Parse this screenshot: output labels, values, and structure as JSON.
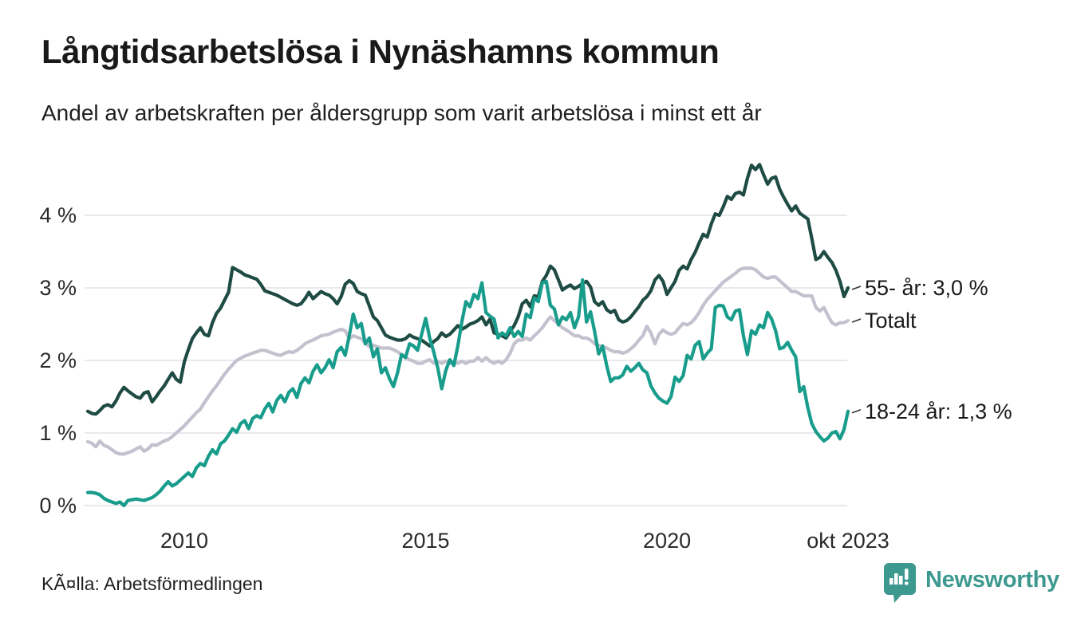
{
  "header": {
    "title": "Långtidsarbetslösa i Nynäshamns kommun",
    "subtitle": "Andel av arbetskraften per åldersgrupp som varit arbetslösa i minst ett år"
  },
  "source": {
    "text": "KÃ¤lla: Arbetsförmedlingen"
  },
  "branding": {
    "name": "Newsworthy",
    "accent_color": "#3d998f",
    "icon": "newsworthy-speech-bubble-bar-chart-icon"
  },
  "chart_data": {
    "type": "line",
    "x_start": "2008-01",
    "x_end": "2023-10",
    "x_interval": "monthly",
    "grid": true,
    "legend_position": "right-edge-direct-labels",
    "y_axis": {
      "unit": "percent",
      "range": [
        0,
        4.75
      ],
      "tick_values": [
        0,
        1,
        2,
        3,
        4
      ],
      "tick_labels": [
        "0 %",
        "1 %",
        "2 %",
        "3 %",
        "4 %"
      ],
      "gridline_color": "#e2e1e6"
    },
    "x_axis": {
      "tick_labels": [
        "2010",
        "2015",
        "2020",
        "okt 2023"
      ],
      "tick_month_indices": [
        24,
        84,
        144,
        189
      ]
    },
    "series": [
      {
        "name": "55- år",
        "label": "55- år: 3,0 %",
        "last_value_text": "3,0 %",
        "color": "#1e4b43",
        "values": [
          1.3,
          1.27,
          1.26,
          1.31,
          1.37,
          1.39,
          1.36,
          1.44,
          1.55,
          1.63,
          1.58,
          1.54,
          1.5,
          1.48,
          1.55,
          1.57,
          1.43,
          1.5,
          1.58,
          1.65,
          1.74,
          1.83,
          1.74,
          1.7,
          1.98,
          2.15,
          2.3,
          2.38,
          2.45,
          2.36,
          2.34,
          2.52,
          2.65,
          2.72,
          2.83,
          2.94,
          3.28,
          3.25,
          3.22,
          3.18,
          3.16,
          3.14,
          3.12,
          3.05,
          2.96,
          2.94,
          2.92,
          2.9,
          2.87,
          2.84,
          2.81,
          2.78,
          2.76,
          2.78,
          2.85,
          2.94,
          2.85,
          2.9,
          2.95,
          2.92,
          2.9,
          2.85,
          2.78,
          2.88,
          3.05,
          3.1,
          3.06,
          2.95,
          2.92,
          2.9,
          2.75,
          2.6,
          2.55,
          2.45,
          2.35,
          2.32,
          2.3,
          2.28,
          2.28,
          2.3,
          2.35,
          2.32,
          2.3,
          2.28,
          2.24,
          2.2,
          2.26,
          2.3,
          2.38,
          2.33,
          2.36,
          2.42,
          2.48,
          2.43,
          2.46,
          2.5,
          2.52,
          2.55,
          2.6,
          2.49,
          2.57,
          2.38,
          2.36,
          2.34,
          2.31,
          2.4,
          2.48,
          2.6,
          2.78,
          2.83,
          2.74,
          2.89,
          2.88,
          3.09,
          3.17,
          3.3,
          3.25,
          3.11,
          2.97,
          3.01,
          3.04,
          2.99,
          3.02,
          3.06,
          3.09,
          3.01,
          2.81,
          2.76,
          2.81,
          2.7,
          2.66,
          2.69,
          2.56,
          2.53,
          2.55,
          2.6,
          2.67,
          2.74,
          2.83,
          2.88,
          2.96,
          3.11,
          3.17,
          3.09,
          2.91,
          3.0,
          3.09,
          3.24,
          3.3,
          3.26,
          3.39,
          3.49,
          3.62,
          3.74,
          3.7,
          3.88,
          4.02,
          4.0,
          4.12,
          4.26,
          4.22,
          4.3,
          4.32,
          4.28,
          4.51,
          4.69,
          4.63,
          4.7,
          4.56,
          4.43,
          4.51,
          4.53,
          4.36,
          4.25,
          4.15,
          4.06,
          4.13,
          4.03,
          3.99,
          3.95,
          3.68,
          3.39,
          3.42,
          3.5,
          3.42,
          3.35,
          3.24,
          3.09,
          2.88,
          3.0
        ]
      },
      {
        "name": "Totalt",
        "label": "Totalt",
        "last_value_text": "",
        "color": "#c4c1ce",
        "values": [
          0.88,
          0.86,
          0.81,
          0.89,
          0.83,
          0.81,
          0.77,
          0.73,
          0.71,
          0.71,
          0.73,
          0.75,
          0.78,
          0.81,
          0.75,
          0.78,
          0.84,
          0.83,
          0.86,
          0.89,
          0.91,
          0.95,
          1.0,
          1.05,
          1.1,
          1.16,
          1.22,
          1.28,
          1.33,
          1.42,
          1.5,
          1.58,
          1.65,
          1.73,
          1.81,
          1.88,
          1.94,
          2.0,
          2.03,
          2.06,
          2.08,
          2.1,
          2.12,
          2.14,
          2.14,
          2.12,
          2.1,
          2.08,
          2.07,
          2.1,
          2.12,
          2.11,
          2.14,
          2.18,
          2.23,
          2.26,
          2.28,
          2.31,
          2.34,
          2.35,
          2.36,
          2.39,
          2.41,
          2.43,
          2.41,
          2.3,
          2.34,
          2.32,
          2.3,
          2.24,
          2.19,
          2.21,
          2.19,
          2.17,
          2.17,
          2.17,
          2.15,
          2.12,
          2.08,
          2.04,
          2.01,
          1.99,
          1.96,
          1.96,
          1.99,
          2.01,
          1.96,
          1.99,
          1.96,
          1.99,
          1.96,
          1.99,
          1.96,
          1.99,
          1.96,
          1.99,
          1.99,
          2.04,
          1.99,
          2.04,
          1.99,
          1.96,
          1.99,
          1.96,
          2.01,
          2.1,
          2.23,
          2.28,
          2.28,
          2.31,
          2.28,
          2.34,
          2.39,
          2.45,
          2.53,
          2.6,
          2.55,
          2.5,
          2.45,
          2.42,
          2.38,
          2.34,
          2.34,
          2.31,
          2.31,
          2.28,
          2.23,
          2.21,
          2.19,
          2.17,
          2.14,
          2.12,
          2.12,
          2.1,
          2.12,
          2.16,
          2.21,
          2.28,
          2.34,
          2.47,
          2.38,
          2.23,
          2.36,
          2.42,
          2.38,
          2.36,
          2.38,
          2.45,
          2.51,
          2.49,
          2.52,
          2.58,
          2.66,
          2.76,
          2.84,
          2.9,
          2.96,
          3.02,
          3.08,
          3.12,
          3.16,
          3.2,
          3.25,
          3.27,
          3.27,
          3.27,
          3.25,
          3.2,
          3.15,
          3.13,
          3.15,
          3.15,
          3.1,
          3.05,
          3.0,
          2.95,
          2.95,
          2.92,
          2.89,
          2.89,
          2.89,
          2.73,
          2.68,
          2.73,
          2.62,
          2.52,
          2.49,
          2.52,
          2.52,
          2.55
        ]
      },
      {
        "name": "18-24 år",
        "label": "18-24 år: 1,3 %",
        "last_value_text": "1,3 %",
        "color": "#189c8c",
        "values": [
          0.18,
          0.18,
          0.17,
          0.15,
          0.1,
          0.07,
          0.05,
          0.03,
          0.05,
          0.0,
          0.07,
          0.08,
          0.09,
          0.08,
          0.07,
          0.09,
          0.11,
          0.15,
          0.2,
          0.27,
          0.33,
          0.27,
          0.3,
          0.35,
          0.4,
          0.45,
          0.4,
          0.52,
          0.58,
          0.55,
          0.68,
          0.77,
          0.71,
          0.85,
          0.89,
          0.97,
          1.06,
          1.01,
          1.13,
          1.17,
          1.06,
          1.2,
          1.24,
          1.21,
          1.33,
          1.41,
          1.29,
          1.45,
          1.52,
          1.43,
          1.56,
          1.61,
          1.49,
          1.68,
          1.76,
          1.69,
          1.85,
          1.94,
          1.83,
          1.9,
          2.01,
          1.9,
          2.12,
          2.18,
          2.07,
          2.34,
          2.64,
          2.45,
          2.51,
          2.23,
          2.31,
          2.05,
          2.16,
          1.83,
          1.9,
          1.75,
          1.64,
          1.83,
          2.08,
          2.04,
          2.23,
          2.2,
          2.14,
          2.36,
          2.58,
          2.31,
          2.12,
          1.9,
          1.61,
          1.86,
          2.01,
          1.93,
          2.2,
          2.53,
          2.81,
          2.74,
          2.91,
          2.85,
          3.07,
          2.66,
          2.61,
          2.57,
          2.31,
          2.38,
          2.34,
          2.45,
          2.33,
          2.4,
          2.33,
          2.64,
          2.59,
          2.86,
          2.81,
          3.07,
          3.09,
          2.76,
          2.71,
          2.49,
          2.6,
          2.56,
          2.66,
          2.45,
          2.6,
          3.11,
          2.53,
          2.67,
          2.4,
          2.09,
          2.2,
          1.93,
          1.71,
          1.76,
          1.76,
          1.8,
          1.92,
          1.85,
          1.9,
          1.96,
          1.87,
          1.83,
          1.65,
          1.55,
          1.48,
          1.44,
          1.41,
          1.5,
          1.77,
          1.71,
          1.79,
          2.07,
          2.02,
          2.21,
          2.26,
          2.02,
          2.1,
          2.16,
          2.73,
          2.76,
          2.75,
          2.6,
          2.56,
          2.68,
          2.7,
          2.34,
          2.08,
          2.41,
          2.36,
          2.49,
          2.45,
          2.66,
          2.57,
          2.41,
          2.16,
          2.18,
          2.25,
          2.14,
          2.05,
          1.57,
          1.64,
          1.35,
          1.13,
          1.02,
          0.95,
          0.89,
          0.93,
          1.0,
          1.02,
          0.92,
          1.05,
          1.3
        ]
      }
    ]
  }
}
